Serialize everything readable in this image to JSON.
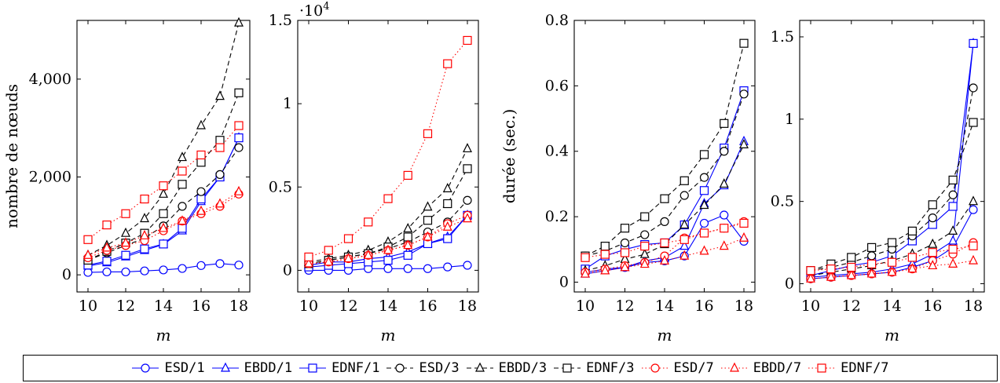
{
  "colors": {
    "ESD": "#0000ff",
    "EBDD": "#000000",
    "EDNF": "#ff0000"
  },
  "chart_data": [
    {
      "type": "line",
      "ylabel": "nombre de nœuds",
      "xlabel": "m",
      "x": [
        10,
        11,
        12,
        13,
        14,
        15,
        16,
        17,
        18
      ],
      "xticks": [
        "10",
        "12",
        "14",
        "16",
        "18"
      ],
      "yticks": [
        "0",
        "2,000",
        "4,000"
      ],
      "ylim": [
        -350,
        5200
      ],
      "series": [
        {
          "name": "ESD/1",
          "values": [
            50,
            60,
            60,
            80,
            100,
            130,
            190,
            230,
            200
          ]
        },
        {
          "name": "EBDD/1",
          "values": [
            180,
            250,
            370,
            500,
            620,
            900,
            1500,
            2000,
            2800
          ]
        },
        {
          "name": "EDNF/1",
          "values": [
            200,
            280,
            400,
            530,
            630,
            950,
            1550,
            2000,
            2800
          ]
        },
        {
          "name": "ESD/3",
          "values": [
            300,
            450,
            600,
            750,
            1000,
            1400,
            1700,
            2050,
            2600
          ]
        },
        {
          "name": "EBDD/3",
          "values": [
            400,
            600,
            850,
            1150,
            1650,
            2400,
            3050,
            3650,
            5150
          ]
        },
        {
          "name": "EDNF/3",
          "values": [
            300,
            480,
            650,
            850,
            1250,
            1850,
            2300,
            2750,
            3720
          ]
        },
        {
          "name": "ESD/7",
          "values": [
            350,
            500,
            600,
            700,
            900,
            1100,
            1250,
            1400,
            1650
          ]
        },
        {
          "name": "EBDD/7",
          "values": [
            400,
            550,
            650,
            800,
            950,
            1100,
            1300,
            1450,
            1700
          ]
        },
        {
          "name": "EDNF/7",
          "values": [
            720,
            1020,
            1250,
            1550,
            1820,
            2120,
            2450,
            2600,
            3050
          ]
        }
      ]
    },
    {
      "type": "line",
      "xlabel": "m",
      "scale_label": "·10",
      "scale_exp": "4",
      "x": [
        10,
        11,
        12,
        13,
        14,
        15,
        16,
        17,
        18
      ],
      "xticks": [
        "10",
        "12",
        "14",
        "16",
        "18"
      ],
      "yticks": [
        "0",
        "0.5",
        "1",
        "1.5"
      ],
      "ylim": [
        -0.13,
        1.5
      ],
      "series": [
        {
          "name": "ESD/1",
          "values": [
            0.0,
            0.0,
            0.0,
            0.01,
            0.01,
            0.01,
            0.01,
            0.02,
            0.03
          ]
        },
        {
          "name": "EBDD/1",
          "values": [
            0.03,
            0.05,
            0.05,
            0.07,
            0.08,
            0.11,
            0.16,
            0.2,
            0.33
          ]
        },
        {
          "name": "EDNF/1",
          "values": [
            0.02,
            0.03,
            0.04,
            0.05,
            0.06,
            0.09,
            0.16,
            0.19,
            0.33
          ]
        },
        {
          "name": "ESD/3",
          "values": [
            0.04,
            0.06,
            0.08,
            0.1,
            0.13,
            0.17,
            0.23,
            0.29,
            0.42
          ]
        },
        {
          "name": "EBDD/3",
          "values": [
            0.05,
            0.07,
            0.09,
            0.12,
            0.17,
            0.25,
            0.38,
            0.49,
            0.73
          ]
        },
        {
          "name": "EDNF/3",
          "values": [
            0.04,
            0.06,
            0.08,
            0.1,
            0.14,
            0.2,
            0.3,
            0.4,
            0.61
          ]
        },
        {
          "name": "ESD/7",
          "values": [
            0.04,
            0.05,
            0.07,
            0.09,
            0.12,
            0.15,
            0.2,
            0.28,
            0.33
          ]
        },
        {
          "name": "EBDD/7",
          "values": [
            0.04,
            0.05,
            0.07,
            0.09,
            0.12,
            0.15,
            0.2,
            0.26,
            0.31
          ]
        },
        {
          "name": "EDNF/7",
          "values": [
            0.08,
            0.12,
            0.19,
            0.29,
            0.43,
            0.57,
            0.82,
            1.24,
            1.38
          ]
        }
      ]
    },
    {
      "type": "line",
      "ylabel": "durée (sec.)",
      "xlabel": "m",
      "x": [
        10,
        11,
        12,
        13,
        14,
        15,
        16,
        17,
        18
      ],
      "xticks": [
        "10",
        "12",
        "14",
        "16",
        "18"
      ],
      "yticks": [
        "0",
        "0.2",
        "0.4",
        "0.6",
        "0.8"
      ],
      "ylim": [
        -0.03,
        0.8
      ],
      "series": [
        {
          "name": "ESD/1",
          "values": [
            0.03,
            0.04,
            0.045,
            0.06,
            0.065,
            0.08,
            0.18,
            0.205,
            0.125
          ]
        },
        {
          "name": "EBDD/1",
          "values": [
            0.025,
            0.035,
            0.045,
            0.065,
            0.075,
            0.11,
            0.24,
            0.295,
            0.43
          ]
        },
        {
          "name": "EDNF/1",
          "values": [
            0.04,
            0.08,
            0.1,
            0.115,
            0.12,
            0.175,
            0.28,
            0.41,
            0.585
          ]
        },
        {
          "name": "ESD/3",
          "values": [
            0.08,
            0.095,
            0.12,
            0.145,
            0.185,
            0.265,
            0.32,
            0.4,
            0.575
          ]
        },
        {
          "name": "EBDD/3",
          "values": [
            0.035,
            0.05,
            0.07,
            0.085,
            0.115,
            0.175,
            0.235,
            0.3,
            0.42
          ]
        },
        {
          "name": "EDNF/3",
          "values": [
            0.08,
            0.11,
            0.165,
            0.2,
            0.255,
            0.31,
            0.39,
            0.485,
            0.73
          ]
        },
        {
          "name": "ESD/7",
          "values": [
            0.03,
            0.04,
            0.05,
            0.06,
            0.08,
            0.135,
            0.15,
            0.165,
            0.185
          ]
        },
        {
          "name": "EBDD/7",
          "values": [
            0.025,
            0.035,
            0.045,
            0.055,
            0.065,
            0.08,
            0.095,
            0.11,
            0.135
          ]
        },
        {
          "name": "EDNF/7",
          "values": [
            0.075,
            0.085,
            0.09,
            0.11,
            0.12,
            0.13,
            0.15,
            0.165,
            0.18
          ]
        }
      ]
    },
    {
      "type": "line",
      "xlabel": "m",
      "x": [
        10,
        11,
        12,
        13,
        14,
        15,
        16,
        17,
        18
      ],
      "xticks": [
        "10",
        "12",
        "14",
        "16",
        "18"
      ],
      "yticks": [
        "0",
        "0.5",
        "1",
        "1.5"
      ],
      "ylim": [
        -0.05,
        1.6
      ],
      "series": [
        {
          "name": "ESD/1",
          "values": [
            0.03,
            0.04,
            0.05,
            0.06,
            0.07,
            0.1,
            0.14,
            0.22,
            0.45
          ]
        },
        {
          "name": "EBDD/1",
          "values": [
            0.04,
            0.05,
            0.06,
            0.07,
            0.09,
            0.12,
            0.18,
            0.26,
            1.46
          ]
        },
        {
          "name": "EDNF/1",
          "values": [
            0.05,
            0.08,
            0.11,
            0.13,
            0.17,
            0.26,
            0.36,
            0.47,
            1.46
          ]
        },
        {
          "name": "ESD/3",
          "values": [
            0.08,
            0.1,
            0.13,
            0.17,
            0.21,
            0.29,
            0.4,
            0.54,
            1.19
          ]
        },
        {
          "name": "EBDD/3",
          "values": [
            0.05,
            0.07,
            0.09,
            0.11,
            0.14,
            0.18,
            0.24,
            0.32,
            0.5
          ]
        },
        {
          "name": "EDNF/3",
          "values": [
            0.08,
            0.12,
            0.16,
            0.22,
            0.25,
            0.32,
            0.48,
            0.63,
            0.98
          ]
        },
        {
          "name": "ESD/7",
          "values": [
            0.03,
            0.04,
            0.05,
            0.06,
            0.07,
            0.09,
            0.14,
            0.18,
            0.25
          ]
        },
        {
          "name": "EBDD/7",
          "values": [
            0.03,
            0.04,
            0.05,
            0.06,
            0.07,
            0.09,
            0.11,
            0.12,
            0.14
          ]
        },
        {
          "name": "EDNF/7",
          "values": [
            0.08,
            0.09,
            0.1,
            0.12,
            0.13,
            0.16,
            0.19,
            0.21,
            0.23
          ]
        }
      ]
    }
  ],
  "legend": [
    {
      "label": "ESD/1",
      "algo": "ESD",
      "k": 1
    },
    {
      "label": "EBDD/1",
      "algo": "EBDD",
      "k": 1
    },
    {
      "label": "EDNF/1",
      "algo": "EDNF",
      "k": 1
    },
    {
      "label": "ESD/3",
      "algo": "ESD",
      "k": 3
    },
    {
      "label": "EBDD/3",
      "algo": "EBDD",
      "k": 3
    },
    {
      "label": "EDNF/3",
      "algo": "EDNF",
      "k": 3
    },
    {
      "label": "ESD/7",
      "algo": "ESD",
      "k": 7
    },
    {
      "label": "EBDD/7",
      "algo": "EBDD",
      "k": 7
    },
    {
      "label": "EDNF/7",
      "algo": "EDNF",
      "k": 7
    }
  ]
}
